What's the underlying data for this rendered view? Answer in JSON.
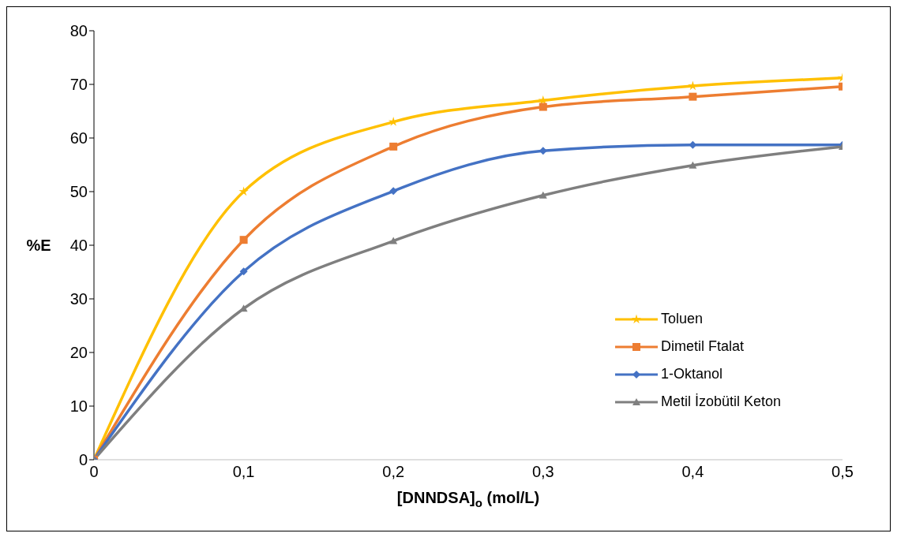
{
  "chart_data": {
    "type": "line",
    "xlabel": "[DNNDSA]$_{o}$ (mol/L)",
    "ylabel": "%E",
    "x": [
      0,
      0.1,
      0.2,
      0.3,
      0.4,
      0.5
    ],
    "xlim": [
      0,
      0.5
    ],
    "xticks": [
      0,
      {
        "value": 0.1,
        "label": "0,1"
      },
      {
        "value": 0.2,
        "label": "0,2"
      },
      {
        "value": 0.3,
        "label": "0,3"
      },
      {
        "value": 0.4,
        "label": "0,4"
      },
      {
        "value": 0.5,
        "label": "0,5"
      }
    ],
    "ylim": [
      0,
      80
    ],
    "yticks": [
      0,
      10,
      20,
      30,
      40,
      50,
      60,
      70,
      80
    ],
    "grid": false,
    "legend": "right",
    "line_style": "solid",
    "series": [
      {
        "name": "Toluen",
        "color": "#ffc000",
        "marker": "star",
        "values": [
          0,
          50,
          63,
          67,
          69.7,
          71.2
        ]
      },
      {
        "name": "Dimetil Ftalat",
        "color": "#ed7d31",
        "marker": "square",
        "values": [
          0,
          41,
          58.4,
          65.8,
          67.7,
          69.6
        ]
      },
      {
        "name": "1-Oktanol",
        "color": "#4472c4",
        "marker": "diamond",
        "values": [
          0,
          35.1,
          50.1,
          57.6,
          58.7,
          58.7
        ]
      },
      {
        "name": "Metil İzobütil Keton",
        "color": "#7f7f7f",
        "marker": "triangle",
        "values": [
          0,
          28.2,
          40.8,
          49.3,
          54.9,
          58.4
        ]
      }
    ]
  }
}
